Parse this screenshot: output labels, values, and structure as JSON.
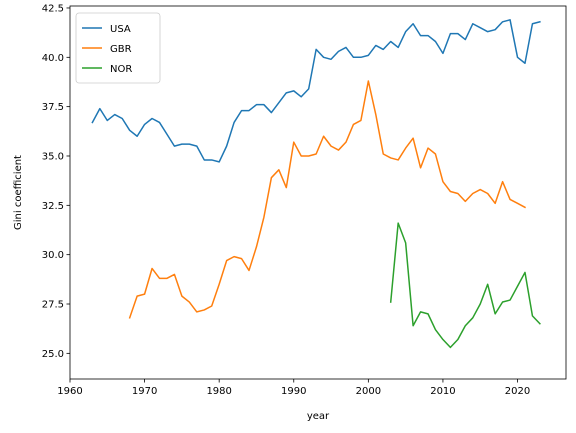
{
  "chart_data": {
    "type": "line",
    "xlabel": "year",
    "ylabel": "Gini coefficient",
    "xlim": [
      1960,
      2026.5
    ],
    "ylim": [
      23.7,
      42.6
    ],
    "xticks": [
      1960,
      1970,
      1980,
      1990,
      2000,
      2010,
      2020
    ],
    "yticks": [
      25.0,
      27.5,
      30.0,
      32.5,
      35.0,
      37.5,
      40.0,
      42.5
    ],
    "grid": false,
    "legend_position": "upper-left",
    "series": [
      {
        "name": "USA",
        "color": "#1f77b4",
        "x": [
          1963,
          1964,
          1965,
          1966,
          1967,
          1968,
          1969,
          1970,
          1971,
          1972,
          1973,
          1974,
          1975,
          1976,
          1977,
          1978,
          1979,
          1980,
          1981,
          1982,
          1983,
          1984,
          1985,
          1986,
          1987,
          1988,
          1989,
          1990,
          1991,
          1992,
          1993,
          1994,
          1995,
          1996,
          1997,
          1998,
          1999,
          2000,
          2001,
          2002,
          2003,
          2004,
          2005,
          2006,
          2007,
          2008,
          2009,
          2010,
          2011,
          2012,
          2013,
          2014,
          2015,
          2016,
          2017,
          2018,
          2019,
          2020,
          2021,
          2022,
          2023
        ],
        "y": [
          36.7,
          37.4,
          36.8,
          37.1,
          36.9,
          36.3,
          36.0,
          36.6,
          36.9,
          36.7,
          36.1,
          35.5,
          35.6,
          35.6,
          35.5,
          34.8,
          34.8,
          34.7,
          35.5,
          36.7,
          37.3,
          37.3,
          37.6,
          37.6,
          37.2,
          37.7,
          38.2,
          38.3,
          38.0,
          38.4,
          40.4,
          40.0,
          39.9,
          40.3,
          40.5,
          40.0,
          40.0,
          40.1,
          40.6,
          40.4,
          40.8,
          40.5,
          41.3,
          41.7,
          41.1,
          41.1,
          40.8,
          40.2,
          41.2,
          41.2,
          40.9,
          41.7,
          41.5,
          41.3,
          41.4,
          41.8,
          41.9,
          40.0,
          39.7,
          41.7,
          41.8
        ]
      },
      {
        "name": "GBR",
        "color": "#ff7f0e",
        "x": [
          1968,
          1969,
          1970,
          1971,
          1972,
          1973,
          1974,
          1975,
          1976,
          1977,
          1978,
          1979,
          1980,
          1981,
          1982,
          1983,
          1984,
          1985,
          1986,
          1987,
          1988,
          1989,
          1990,
          1991,
          1992,
          1993,
          1994,
          1995,
          1996,
          1997,
          1998,
          1999,
          2000,
          2001,
          2002,
          2003,
          2004,
          2005,
          2006,
          2007,
          2008,
          2009,
          2010,
          2011,
          2012,
          2013,
          2014,
          2015,
          2016,
          2017,
          2018,
          2019,
          2020,
          2021
        ],
        "y": [
          26.8,
          27.9,
          28.0,
          29.3,
          28.8,
          28.8,
          29.0,
          27.9,
          27.6,
          27.1,
          27.2,
          27.4,
          28.5,
          29.7,
          29.9,
          29.8,
          29.2,
          30.4,
          31.9,
          33.9,
          34.3,
          33.4,
          35.7,
          35.0,
          35.0,
          35.1,
          36.0,
          35.5,
          35.3,
          35.7,
          36.6,
          36.8,
          38.8,
          37.1,
          35.1,
          34.9,
          34.8,
          35.4,
          35.9,
          34.4,
          35.4,
          35.1,
          33.7,
          33.2,
          33.1,
          32.7,
          33.1,
          33.3,
          33.1,
          32.6,
          33.7,
          32.8,
          32.6,
          32.4
        ]
      },
      {
        "name": "NOR",
        "color": "#2ca02c",
        "x": [
          2003,
          2004,
          2005,
          2006,
          2007,
          2008,
          2009,
          2010,
          2011,
          2012,
          2013,
          2014,
          2015,
          2016,
          2017,
          2018,
          2019,
          2020,
          2021,
          2022,
          2023
        ],
        "y": [
          27.6,
          31.6,
          30.6,
          26.4,
          27.1,
          27.0,
          26.2,
          25.7,
          25.3,
          25.7,
          26.4,
          26.8,
          27.5,
          28.5,
          27.0,
          27.6,
          27.7,
          28.4,
          29.1,
          26.9,
          26.5
        ]
      }
    ]
  }
}
